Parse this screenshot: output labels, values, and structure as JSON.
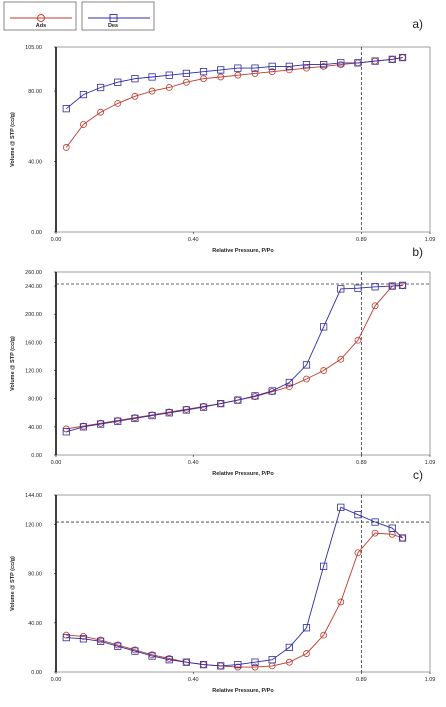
{
  "legend": [
    {
      "name": "Ads",
      "color": "#c0392b",
      "marker": "circle"
    },
    {
      "name": "Des",
      "color": "#2c2ca6",
      "marker": "square"
    }
  ],
  "chart_data": [
    {
      "panel": "a)",
      "type": "line",
      "xlabel": "Relative Pressure, P/Po",
      "ylabel": "Volume @ STP (cc/g)",
      "xlim": [
        0,
        1.09
      ],
      "ylim": [
        0,
        105
      ],
      "xticks": [
        "0.00",
        "0.40",
        "0.89",
        "1.09"
      ],
      "yticks": [
        "0.00",
        "40.00",
        "80.00",
        "105.00"
      ],
      "ref_x": 0.89,
      "series": [
        {
          "name": "Ads",
          "x": [
            0.03,
            0.08,
            0.13,
            0.18,
            0.23,
            0.28,
            0.33,
            0.38,
            0.43,
            0.48,
            0.53,
            0.58,
            0.63,
            0.68,
            0.73,
            0.78,
            0.83,
            0.88,
            0.93,
            0.98,
            1.01
          ],
          "y": [
            48,
            61,
            68,
            73,
            77,
            80,
            82,
            85,
            87,
            88,
            89,
            90,
            91,
            92,
            93,
            94,
            95,
            96,
            97,
            98,
            99
          ]
        },
        {
          "name": "Des",
          "x": [
            0.03,
            0.08,
            0.13,
            0.18,
            0.23,
            0.28,
            0.33,
            0.38,
            0.43,
            0.48,
            0.53,
            0.58,
            0.63,
            0.68,
            0.73,
            0.78,
            0.83,
            0.88,
            0.93,
            0.98,
            1.01
          ],
          "y": [
            70,
            78,
            82,
            85,
            87,
            88,
            89,
            90,
            91,
            92,
            93,
            93,
            94,
            94,
            95,
            95,
            96,
            96,
            97,
            98,
            99
          ]
        }
      ]
    },
    {
      "panel": "b)",
      "type": "line",
      "xlabel": "Relative Pressure, P/Po",
      "ylabel": "Volume @ STP (cc/g)",
      "xlim": [
        0,
        1.09
      ],
      "ylim": [
        0,
        260
      ],
      "xticks": [
        "0.00",
        "0.40",
        "0.89",
        "1.09"
      ],
      "yticks": [
        "0.00",
        "40.00",
        "80.00",
        "120.00",
        "160.00",
        "200.00",
        "240.00",
        "260.00"
      ],
      "ref_x": 0.89,
      "ref_y": 243,
      "series": [
        {
          "name": "Ads",
          "x": [
            0.03,
            0.08,
            0.13,
            0.18,
            0.23,
            0.28,
            0.33,
            0.38,
            0.43,
            0.48,
            0.53,
            0.58,
            0.63,
            0.68,
            0.73,
            0.78,
            0.83,
            0.88,
            0.93,
            0.98,
            1.01
          ],
          "y": [
            37,
            41,
            45,
            49,
            53,
            57,
            61,
            65,
            69,
            73,
            78,
            83,
            90,
            97,
            108,
            120,
            136,
            163,
            212,
            240,
            241
          ]
        },
        {
          "name": "Des",
          "x": [
            0.03,
            0.08,
            0.13,
            0.18,
            0.23,
            0.28,
            0.33,
            0.38,
            0.43,
            0.48,
            0.53,
            0.58,
            0.63,
            0.68,
            0.73,
            0.78,
            0.83,
            0.88,
            0.93,
            0.98,
            1.01
          ],
          "y": [
            33,
            40,
            44,
            48,
            52,
            56,
            60,
            64,
            68,
            73,
            78,
            84,
            91,
            103,
            128,
            182,
            236,
            237,
            239,
            240,
            241
          ]
        }
      ]
    },
    {
      "panel": "c)",
      "type": "line",
      "xlabel": "Relative Pressure, P/Po",
      "ylabel": "Volume @ STP (cc/g)",
      "xlim": [
        0,
        1.09
      ],
      "ylim": [
        0,
        144
      ],
      "xticks": [
        "0.00",
        "0.40",
        "0.89",
        "1.09"
      ],
      "yticks": [
        "0.00",
        "40.00",
        "80.00",
        "120.00",
        "144.00"
      ],
      "ref_x": 0.89,
      "ref_y": 122,
      "series": [
        {
          "name": "Ads",
          "x": [
            0.03,
            0.08,
            0.13,
            0.18,
            0.23,
            0.28,
            0.33,
            0.38,
            0.43,
            0.48,
            0.53,
            0.58,
            0.63,
            0.68,
            0.73,
            0.78,
            0.83,
            0.88,
            0.93,
            0.98,
            1.01
          ],
          "y": [
            30,
            29,
            26,
            22,
            18,
            14,
            11,
            8,
            6,
            5,
            4,
            4,
            5,
            8,
            15,
            30,
            57,
            97,
            113,
            112,
            109
          ]
        },
        {
          "name": "Des",
          "x": [
            0.03,
            0.08,
            0.13,
            0.18,
            0.23,
            0.28,
            0.33,
            0.38,
            0.43,
            0.48,
            0.53,
            0.58,
            0.63,
            0.68,
            0.73,
            0.78,
            0.83,
            0.88,
            0.93,
            0.98,
            1.01
          ],
          "y": [
            28,
            27,
            25,
            21,
            17,
            13,
            10,
            8,
            6,
            5,
            6,
            8,
            10,
            20,
            36,
            86,
            134,
            128,
            122,
            117,
            109
          ]
        }
      ]
    }
  ]
}
